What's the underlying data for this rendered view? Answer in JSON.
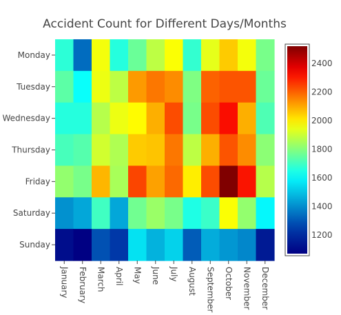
{
  "chart_data": {
    "type": "heatmap",
    "title": "Accident Count for Different Days/Months",
    "x": [
      "January",
      "February",
      "March",
      "April",
      "May",
      "June",
      "July",
      "August",
      "September",
      "October",
      "November",
      "December"
    ],
    "y": [
      "Monday",
      "Tuesday",
      "Wednesday",
      "Thursday",
      "Friday",
      "Saturday",
      "Sunday"
    ],
    "z": [
      [
        1670,
        1340,
        1960,
        1660,
        1760,
        1880,
        1970,
        1680,
        1940,
        2050,
        1960,
        1780
      ],
      [
        1740,
        1620,
        1950,
        1880,
        2120,
        2170,
        2140,
        1790,
        2200,
        2220,
        2220,
        1760
      ],
      [
        1660,
        1660,
        1870,
        1950,
        1980,
        2090,
        2230,
        1780,
        2230,
        2320,
        2090,
        1720
      ],
      [
        1710,
        1730,
        1910,
        1860,
        2050,
        2060,
        2170,
        1880,
        2090,
        2220,
        2140,
        1810
      ],
      [
        1820,
        1780,
        2080,
        1850,
        2240,
        2110,
        2190,
        2000,
        2230,
        2520,
        2310,
        1870
      ],
      [
        1410,
        1450,
        1700,
        1450,
        1770,
        1830,
        1780,
        1650,
        1690,
        1970,
        1820,
        1600
      ],
      [
        1110,
        1070,
        1290,
        1240,
        1560,
        1470,
        1530,
        1310,
        1460,
        1420,
        1390,
        1150
      ]
    ],
    "zmin": 1070,
    "zmax": 2520,
    "colorscale": "Jet",
    "colorbar": {
      "tickvals": [
        1200,
        1400,
        1600,
        1800,
        2000,
        2200,
        2400
      ],
      "ticktext": [
        "1200",
        "1400",
        "1600",
        "1800",
        "2000",
        "2200",
        "2400"
      ]
    }
  }
}
